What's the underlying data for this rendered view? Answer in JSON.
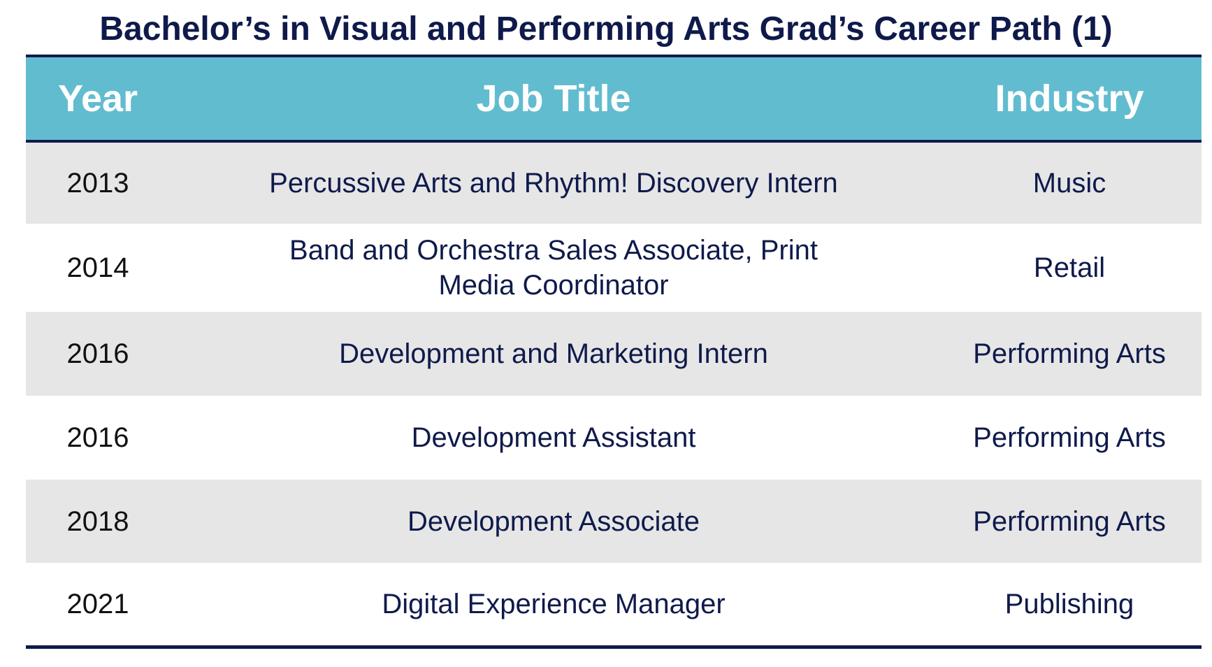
{
  "title": "Bachelor’s in Visual and Performing Arts Grad’s Career Path (1)",
  "table": {
    "headers": {
      "year": "Year",
      "job_title": "Job Title",
      "industry": "Industry"
    },
    "rows": [
      {
        "year": "2013",
        "job_title": "Percussive Arts and Rhythm! Discovery Intern",
        "industry": "Music"
      },
      {
        "year": "2014",
        "job_title": "Band and Orchestra Sales Associate, Print Media Coordinator",
        "industry": "Retail"
      },
      {
        "year": "2016",
        "job_title": "Development and Marketing Intern",
        "industry": "Performing Arts"
      },
      {
        "year": "2016",
        "job_title": "Development Assistant",
        "industry": "Performing Arts"
      },
      {
        "year": "2018",
        "job_title": "Development Associate",
        "industry": "Performing Arts"
      },
      {
        "year": "2021",
        "job_title": "Digital Experience Manager",
        "industry": "Publishing"
      }
    ]
  },
  "colors": {
    "header_bg": "#62bcd0",
    "rule": "#0f1a4b",
    "shade_row": "#e6e6e6",
    "text": "#0f1a4b"
  }
}
